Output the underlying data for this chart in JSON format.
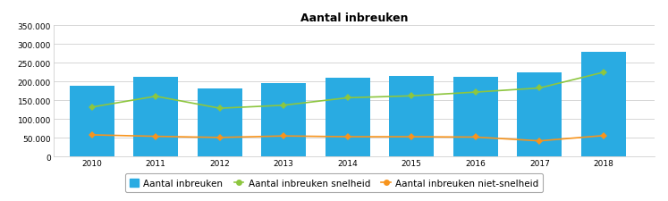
{
  "title": "Aantal inbreuken",
  "years": [
    2010,
    2011,
    2012,
    2013,
    2014,
    2015,
    2016,
    2017,
    2018
  ],
  "bar_values": [
    190000,
    213000,
    182000,
    195000,
    210000,
    216000,
    212000,
    224000,
    280000
  ],
  "snelheid_values": [
    132000,
    161000,
    129000,
    137000,
    157000,
    162000,
    172000,
    183000,
    225000
  ],
  "niet_snelheid_values": [
    58000,
    54000,
    51000,
    55000,
    53000,
    53000,
    52000,
    42000,
    56000
  ],
  "bar_color": "#29ABE2",
  "snelheid_color": "#8DC63F",
  "niet_snelheid_color": "#F7941D",
  "ylim": [
    0,
    350000
  ],
  "yticks": [
    0,
    50000,
    100000,
    150000,
    200000,
    250000,
    300000,
    350000
  ],
  "ytick_labels": [
    "0",
    "50.000",
    "100.000",
    "150.000",
    "200.000",
    "250.000",
    "300.000",
    "350.000"
  ],
  "legend_labels": [
    "Aantal inbreuken",
    "Aantal inbreuken snelheid",
    "Aantal inbreuken niet-snelheid"
  ],
  "background_color": "#ffffff",
  "grid_color": "#d0d0d0",
  "title_fontsize": 9,
  "tick_fontsize": 6.5
}
